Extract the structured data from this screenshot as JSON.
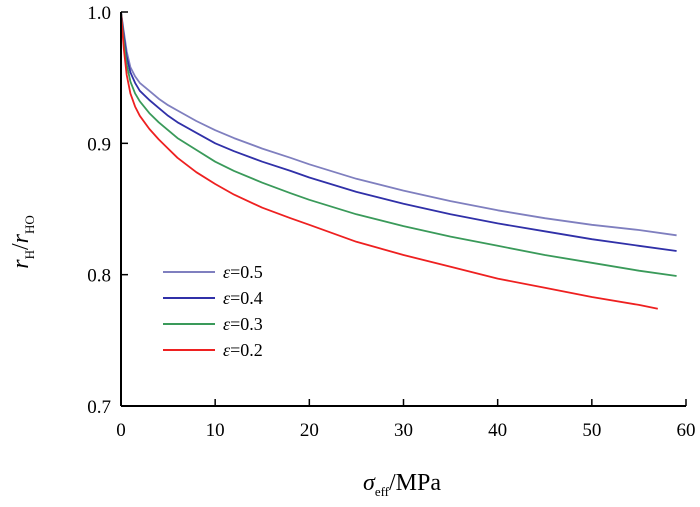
{
  "chart_data": {
    "type": "line",
    "title": "",
    "xlabel": {
      "main": "σ",
      "sub": "eff",
      "unit": "/MPa"
    },
    "ylabel": {
      "r1": "r",
      "sub1": "H",
      "slash": "/",
      "r2": "r",
      "sub2": "HO"
    },
    "xlim": [
      0,
      60
    ],
    "ylim": [
      0.7,
      1.0
    ],
    "xticks": [
      0,
      10,
      20,
      30,
      40,
      50,
      60
    ],
    "yticks": [
      0.7,
      0.8,
      0.9,
      1.0
    ],
    "ytick_labels": [
      "0.7",
      "0.8",
      "0.9",
      "1.0"
    ],
    "grid": false,
    "legend_position": "lower-left",
    "series": [
      {
        "name": "ε=0.5",
        "symbol": "ε",
        "value_text": "=0.5",
        "color": "#7f7fbf",
        "x": [
          0,
          0.3,
          0.6,
          1,
          1.5,
          2,
          3,
          4,
          5,
          6,
          8,
          10,
          12,
          15,
          18,
          20,
          25,
          30,
          35,
          40,
          45,
          50,
          55,
          59
        ],
        "y": [
          1.0,
          0.985,
          0.97,
          0.958,
          0.951,
          0.946,
          0.94,
          0.934,
          0.929,
          0.925,
          0.917,
          0.91,
          0.904,
          0.896,
          0.889,
          0.884,
          0.873,
          0.864,
          0.856,
          0.849,
          0.843,
          0.838,
          0.834,
          0.83
        ]
      },
      {
        "name": "ε=0.4",
        "symbol": "ε",
        "value_text": "=0.4",
        "color": "#3030a8",
        "x": [
          0,
          0.3,
          0.6,
          1,
          1.5,
          2,
          3,
          4,
          5,
          6,
          8,
          10,
          12,
          15,
          18,
          20,
          25,
          30,
          35,
          40,
          45,
          50,
          55,
          59
        ],
        "y": [
          1.0,
          0.982,
          0.966,
          0.954,
          0.946,
          0.94,
          0.933,
          0.927,
          0.921,
          0.916,
          0.908,
          0.9,
          0.894,
          0.886,
          0.879,
          0.874,
          0.863,
          0.854,
          0.846,
          0.839,
          0.833,
          0.827,
          0.822,
          0.818
        ]
      },
      {
        "name": "ε=0.3",
        "symbol": "ε",
        "value_text": "=0.3",
        "color": "#3a9a5a",
        "x": [
          0,
          0.3,
          0.6,
          1,
          1.5,
          2,
          3,
          4,
          5,
          6,
          8,
          10,
          12,
          15,
          18,
          20,
          25,
          30,
          35,
          40,
          45,
          50,
          55,
          59
        ],
        "y": [
          1.0,
          0.978,
          0.96,
          0.947,
          0.938,
          0.932,
          0.923,
          0.916,
          0.91,
          0.904,
          0.895,
          0.886,
          0.879,
          0.87,
          0.862,
          0.857,
          0.846,
          0.837,
          0.829,
          0.822,
          0.815,
          0.809,
          0.803,
          0.799
        ]
      },
      {
        "name": "ε=0.2",
        "symbol": "ε",
        "value_text": "=0.2",
        "color": "#ee2020",
        "x": [
          0,
          0.3,
          0.6,
          1,
          1.5,
          2,
          3,
          4,
          5,
          6,
          8,
          10,
          12,
          15,
          18,
          20,
          25,
          30,
          35,
          40,
          45,
          50,
          55,
          57
        ],
        "y": [
          1.0,
          0.972,
          0.952,
          0.938,
          0.928,
          0.921,
          0.911,
          0.903,
          0.896,
          0.889,
          0.878,
          0.869,
          0.861,
          0.851,
          0.843,
          0.838,
          0.825,
          0.815,
          0.806,
          0.797,
          0.79,
          0.783,
          0.777,
          0.774
        ]
      }
    ]
  }
}
